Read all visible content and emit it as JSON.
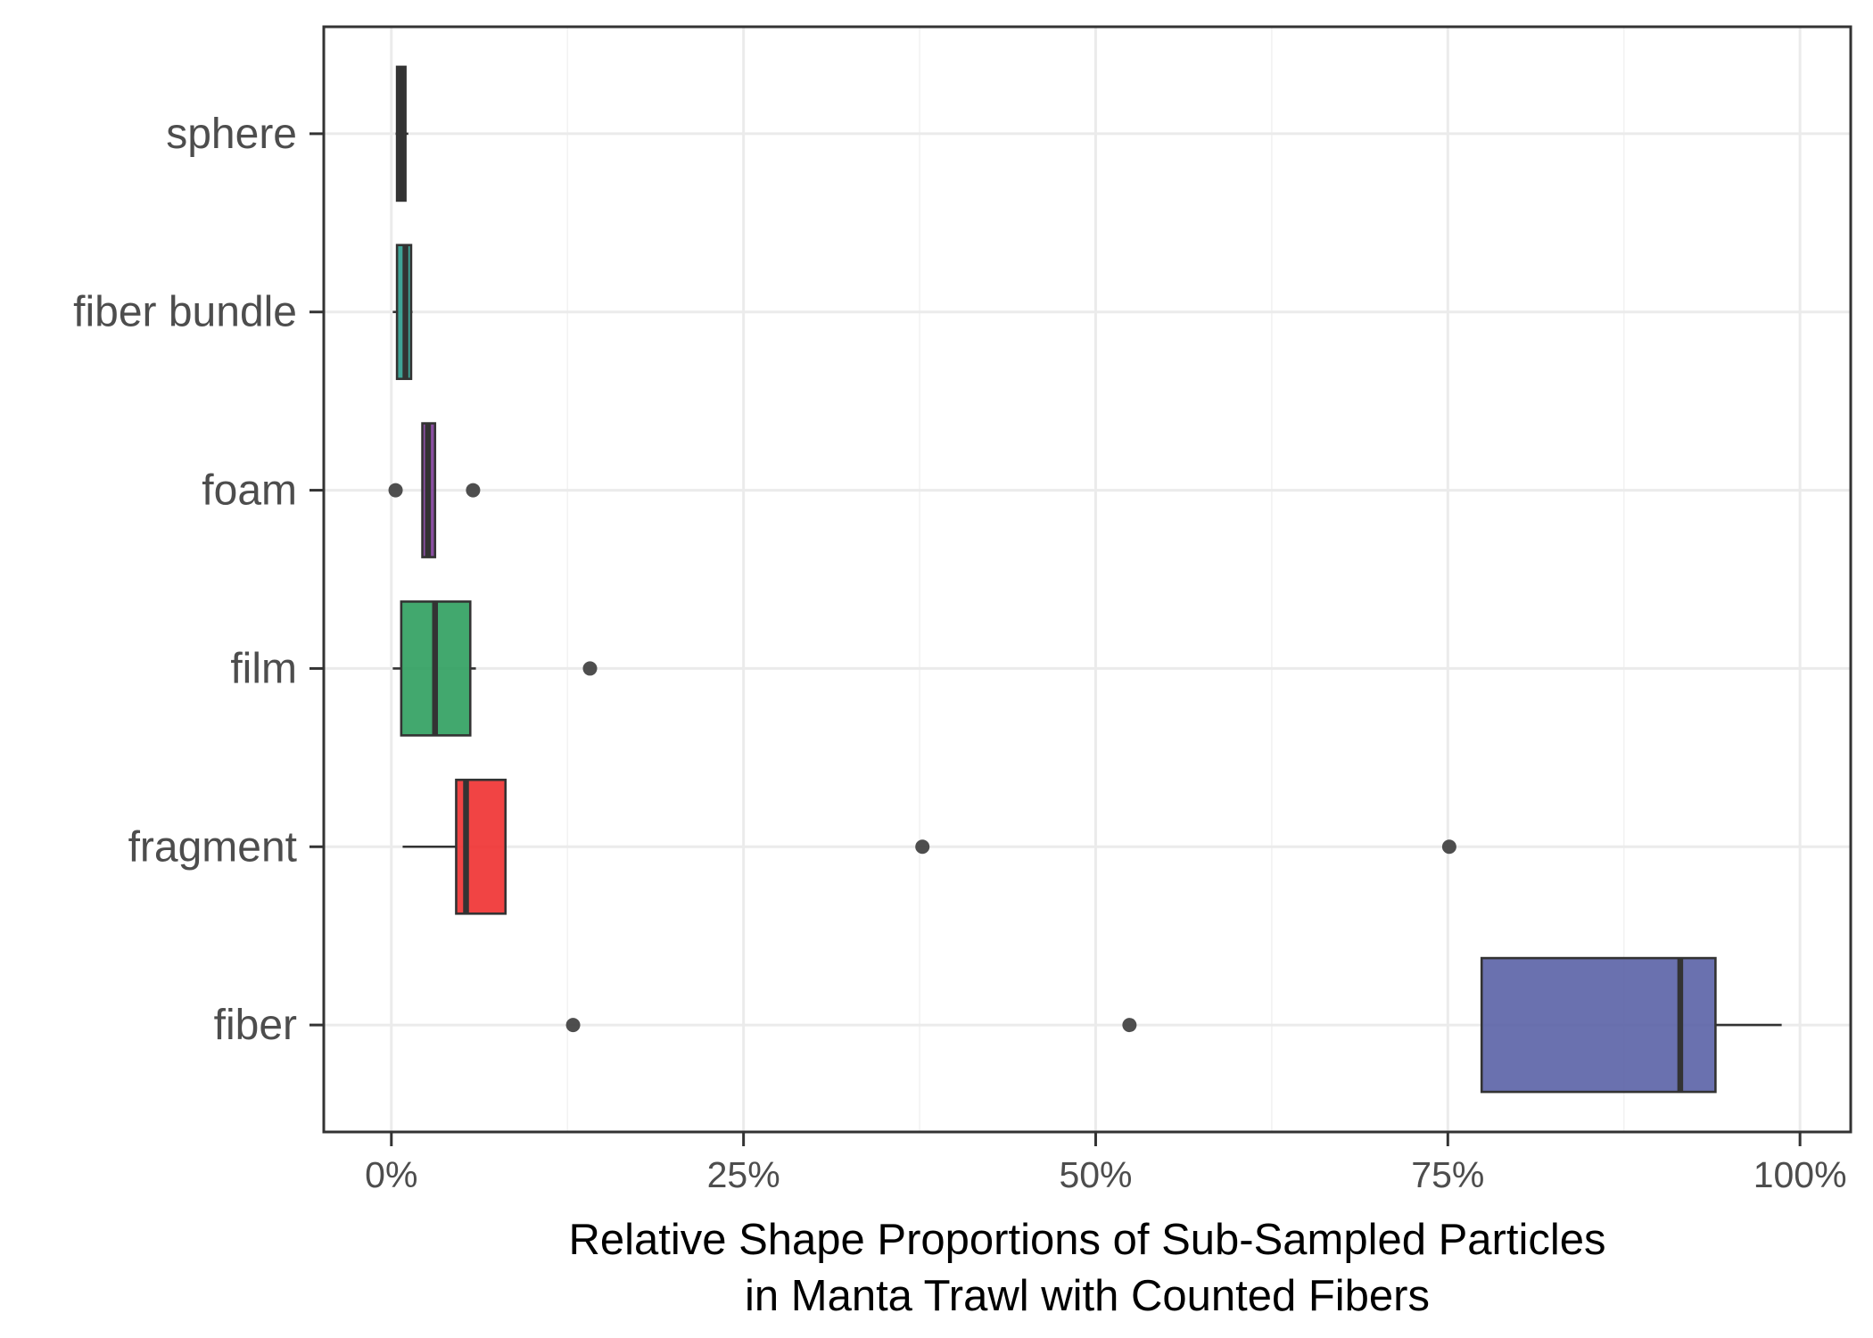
{
  "chart_data": {
    "type": "box",
    "orientation": "horizontal",
    "categories": [
      "sphere",
      "fiber bundle",
      "foam",
      "film",
      "fragment",
      "fiber"
    ],
    "boxes": [
      {
        "category": "sphere",
        "whisker_low": 0.3,
        "q1": 0.4,
        "median": 0.7,
        "q3": 1.0,
        "whisker_high": 1.2,
        "outliers": [],
        "color": "#333333"
      },
      {
        "category": "fiber bundle",
        "whisker_low": 0.1,
        "q1": 0.4,
        "median": 1.0,
        "q3": 1.4,
        "whisker_high": 1.5,
        "outliers": [],
        "color": "#2a9a8c"
      },
      {
        "category": "foam",
        "whisker_low": 2.2,
        "q1": 2.2,
        "median": 2.6,
        "q3": 3.1,
        "whisker_high": 3.1,
        "outliers": [
          0.3,
          5.8
        ],
        "color": "#7d3c98"
      },
      {
        "category": "film",
        "whisker_low": 0.1,
        "q1": 0.7,
        "median": 3.1,
        "q3": 5.6,
        "whisker_high": 6.0,
        "outliers": [
          14.1
        ],
        "color": "#2e9e5e"
      },
      {
        "category": "fragment",
        "whisker_low": 0.8,
        "q1": 4.6,
        "median": 5.3,
        "q3": 8.1,
        "whisker_high": 8.1,
        "outliers": [
          37.7,
          75.1
        ],
        "color": "#f03030"
      },
      {
        "category": "fiber",
        "whisker_low": 77.4,
        "q1": 77.4,
        "median": 91.5,
        "q3": 94.0,
        "whisker_high": 98.7,
        "outliers": [
          12.9,
          52.4
        ],
        "color": "#5a62a6"
      }
    ],
    "x_ticks": [
      0,
      25,
      50,
      75,
      100
    ],
    "x_tick_labels": [
      "0%",
      "25%",
      "50%",
      "75%",
      "100%"
    ],
    "x_minor_ticks": [
      12.5,
      37.5,
      62.5,
      87.5
    ],
    "xlim": [
      -4.8,
      103.6
    ],
    "xlabel_lines": [
      "Relative Shape Proportions of Sub-Sampled Particles",
      "in Manta Trawl with Counted Fibers"
    ],
    "ylabel": "",
    "grid": true,
    "legend": "none"
  }
}
